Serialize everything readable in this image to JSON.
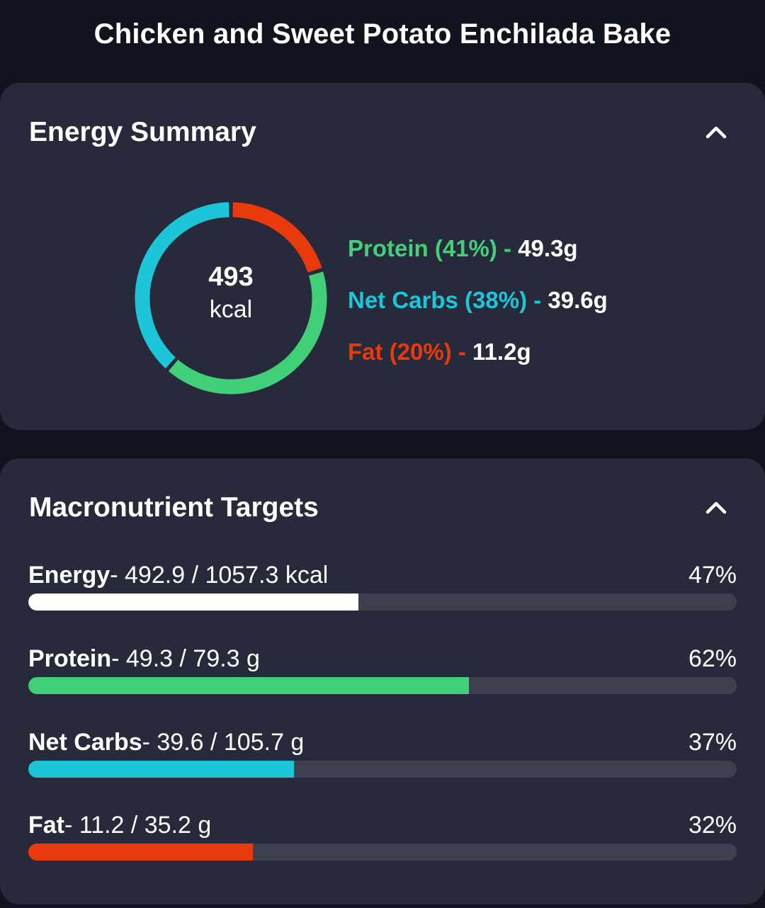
{
  "page": {
    "title": "Chicken and Sweet Potato Enchilada Bake"
  },
  "colors": {
    "protein": "#41cf77",
    "carbs": "#1cc6d8",
    "fat": "#e93a0c",
    "energy": "#ffffff",
    "track": "#3e4050"
  },
  "energy_summary": {
    "title": "Energy Summary",
    "collapse_icon": "chevron-up-icon",
    "total_kcal": "493",
    "unit": "kcal",
    "macros": [
      {
        "key": "protein",
        "label": "Protein (41%) - ",
        "amount": "49.3g",
        "percent": 41
      },
      {
        "key": "carbs",
        "label": "Net Carbs (38%) - ",
        "amount": "39.6g",
        "percent": 38
      },
      {
        "key": "fat",
        "label": "Fat (20%) - ",
        "amount": "11.2g",
        "percent": 20
      }
    ]
  },
  "macro_targets": {
    "title": "Macronutrient Targets",
    "collapse_icon": "chevron-up-icon",
    "items": [
      {
        "key": "energy",
        "name": "Energy",
        "values": "- 492.9 / 1057.3 kcal",
        "percent_label": "47%",
        "fraction": 0.466
      },
      {
        "key": "protein",
        "name": "Protein",
        "values": "- 49.3 / 79.3 g",
        "percent_label": "62%",
        "fraction": 0.622
      },
      {
        "key": "carbs",
        "name": "Net Carbs",
        "values": "- 39.6 / 105.7 g",
        "percent_label": "37%",
        "fraction": 0.375
      },
      {
        "key": "fat",
        "name": "Fat",
        "values": "- 11.2 / 35.2 g",
        "percent_label": "32%",
        "fraction": 0.317
      }
    ]
  }
}
